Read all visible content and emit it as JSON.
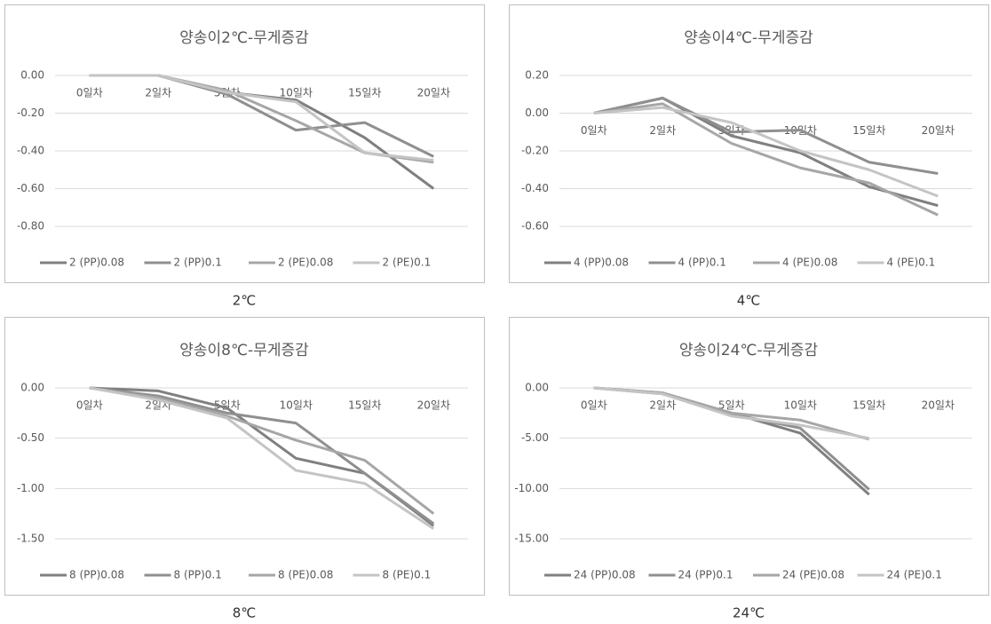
{
  "chart_data": [
    {
      "type": "line",
      "title": "양송이2℃-무게증감",
      "caption": "2℃",
      "grid": true,
      "categories": [
        "0일차",
        "2일차",
        "5일차",
        "10일차",
        "15일차",
        "20일차"
      ],
      "ylim": [
        -0.8,
        0
      ],
      "yticks": [
        {
          "value": 0,
          "label": "0.00"
        },
        {
          "value": -0.2,
          "label": "-0.20"
        },
        {
          "value": -0.4,
          "label": "-0.40"
        },
        {
          "value": -0.6,
          "label": "-0.60"
        },
        {
          "value": -0.8,
          "label": "-0.80"
        }
      ],
      "series": [
        {
          "name": "2 (PP)0.08",
          "color": "#808080",
          "values": [
            0,
            0,
            -0.09,
            -0.13,
            -0.33,
            -0.6
          ]
        },
        {
          "name": "2 (PP)0.1",
          "color": "#8f8f8f",
          "values": [
            0,
            0,
            -0.1,
            -0.29,
            -0.25,
            -0.43
          ]
        },
        {
          "name": "2 (PE)0.08",
          "color": "#a6a6a6",
          "values": [
            0,
            0,
            -0.08,
            -0.24,
            -0.41,
            -0.46
          ]
        },
        {
          "name": "2 (PE)0.1",
          "color": "#c4c4c4",
          "values": [
            0,
            0,
            -0.09,
            -0.14,
            -0.41,
            -0.45
          ]
        }
      ]
    },
    {
      "type": "line",
      "title": "양송이4℃-무게증감",
      "caption": "4℃",
      "grid": true,
      "categories": [
        "0일차",
        "2일차",
        "5일차",
        "10일차",
        "15일차",
        "20일차"
      ],
      "ylim": [
        -0.6,
        0.2
      ],
      "yticks": [
        {
          "value": 0.2,
          "label": "0.20"
        },
        {
          "value": 0,
          "label": "0.00"
        },
        {
          "value": -0.2,
          "label": "-0.20"
        },
        {
          "value": -0.4,
          "label": "-0.40"
        },
        {
          "value": -0.6,
          "label": "-0.60"
        }
      ],
      "series": [
        {
          "name": "4 (PP)0.08",
          "color": "#808080",
          "values": [
            0,
            0.08,
            -0.12,
            -0.21,
            -0.39,
            -0.49
          ]
        },
        {
          "name": "4 (PP)0.1",
          "color": "#8f8f8f",
          "values": [
            0,
            0.08,
            -0.1,
            -0.09,
            -0.26,
            -0.32
          ]
        },
        {
          "name": "4 (PE)0.08",
          "color": "#a6a6a6",
          "values": [
            0,
            0.05,
            -0.16,
            -0.29,
            -0.37,
            -0.54
          ]
        },
        {
          "name": "4 (PE)0.1",
          "color": "#c4c4c4",
          "values": [
            0,
            0.03,
            -0.05,
            -0.2,
            -0.3,
            -0.44
          ]
        }
      ]
    },
    {
      "type": "line",
      "title": "양송이8℃-무게증감",
      "caption": "8℃",
      "grid": true,
      "categories": [
        "0일차",
        "2일차",
        "5일차",
        "10일차",
        "15일차",
        "20일차"
      ],
      "ylim": [
        -1.5,
        0
      ],
      "yticks": [
        {
          "value": 0,
          "label": "0.00"
        },
        {
          "value": -0.5,
          "label": "-0.50"
        },
        {
          "value": -1,
          "label": "-1.00"
        },
        {
          "value": -1.5,
          "label": "-1.50"
        }
      ],
      "series": [
        {
          "name": "8 (PP)0.08",
          "color": "#808080",
          "values": [
            0,
            -0.03,
            -0.2,
            -0.7,
            -0.85,
            -1.37
          ]
        },
        {
          "name": "8 (PP)0.1",
          "color": "#8f8f8f",
          "values": [
            0,
            -0.08,
            -0.25,
            -0.35,
            -0.85,
            -1.35
          ]
        },
        {
          "name": "8 (PE)0.08",
          "color": "#a6a6a6",
          "values": [
            0,
            -0.1,
            -0.28,
            -0.52,
            -0.72,
            -1.25
          ]
        },
        {
          "name": "8 (PE)0.1",
          "color": "#c4c4c4",
          "values": [
            0,
            -0.12,
            -0.3,
            -0.82,
            -0.95,
            -1.4
          ]
        }
      ]
    },
    {
      "type": "line",
      "title": "양송이24℃-무게증감",
      "caption": "24℃",
      "grid": true,
      "categories": [
        "0일차",
        "2일차",
        "5일차",
        "10일차",
        "15일차",
        "20일차"
      ],
      "ylim": [
        -15,
        0
      ],
      "yticks": [
        {
          "value": 0,
          "label": "0.00"
        },
        {
          "value": -5,
          "label": "-5.00"
        },
        {
          "value": -10,
          "label": "-10.00"
        },
        {
          "value": -15,
          "label": "-15.00"
        }
      ],
      "series": [
        {
          "name": "24 (PP)0.08",
          "color": "#808080",
          "values": [
            0,
            -0.5,
            -2.5,
            -4.5,
            -10.6,
            null
          ]
        },
        {
          "name": "24 (PP)0.1",
          "color": "#8f8f8f",
          "values": [
            0,
            -0.6,
            -2.6,
            -4,
            -10.1,
            null
          ]
        },
        {
          "name": "24 (PE)0.08",
          "color": "#a6a6a6",
          "values": [
            0,
            -0.5,
            -2.5,
            -3.2,
            -5.1,
            null
          ]
        },
        {
          "name": "24 (PE)0.1",
          "color": "#c4c4c4",
          "values": [
            0,
            -0.6,
            -2.8,
            -3.7,
            -5,
            null
          ]
        }
      ]
    }
  ]
}
